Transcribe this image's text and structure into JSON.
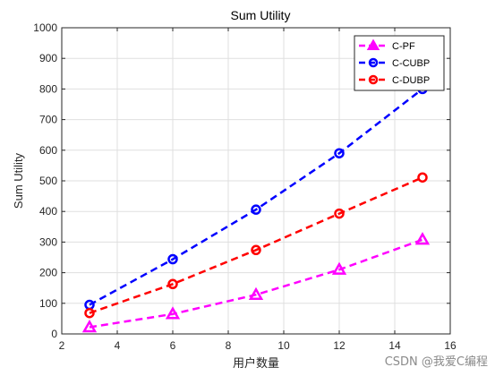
{
  "chart_data": {
    "type": "line",
    "title": "Sum Utility",
    "xlabel": "用户数量",
    "ylabel": "Sum Utility",
    "xlim": [
      2,
      16
    ],
    "ylim": [
      0,
      1000
    ],
    "xticks": [
      2,
      4,
      6,
      8,
      10,
      12,
      14,
      16
    ],
    "yticks": [
      0,
      100,
      200,
      300,
      400,
      500,
      600,
      700,
      800,
      900,
      1000
    ],
    "grid": true,
    "legend_position": "top-right",
    "x": [
      3,
      6,
      9,
      12,
      15
    ],
    "series": [
      {
        "name": "C-PF",
        "values": [
          22,
          65,
          128,
          210,
          308
        ],
        "color": "#ff00ff",
        "marker": "triangle"
      },
      {
        "name": "C-CUBP",
        "values": [
          95,
          244,
          406,
          590,
          800
        ],
        "color": "#0000ff",
        "marker": "circle"
      },
      {
        "name": "C-DUBP",
        "values": [
          68,
          163,
          274,
          393,
          511
        ],
        "color": "#ff0000",
        "marker": "circle"
      }
    ]
  },
  "watermark": "CSDN @我爱C编程"
}
